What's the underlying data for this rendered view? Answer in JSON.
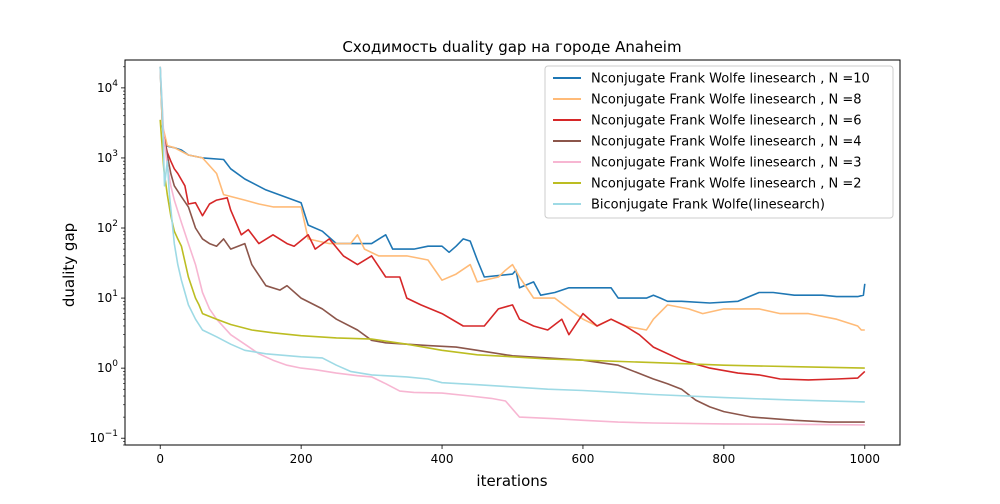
{
  "chart_data": {
    "type": "line",
    "title": "Сходимость duality gap на городе Anaheim",
    "xlabel": "iterations",
    "ylabel": "duality gap",
    "yscale": "log",
    "xlim": [
      -50,
      1050
    ],
    "ylim": [
      0.08,
      25000
    ],
    "xticks": [
      0,
      200,
      400,
      600,
      800,
      1000
    ],
    "xtick_labels": [
      "0",
      "200",
      "400",
      "600",
      "800",
      "1000"
    ],
    "yticks": [
      0.1,
      1,
      10,
      100,
      1000,
      10000
    ],
    "ytick_labels": [
      {
        "base": "10",
        "exp": "−1"
      },
      {
        "base": "10",
        "exp": "0"
      },
      {
        "base": "10",
        "exp": "1"
      },
      {
        "base": "10",
        "exp": "2"
      },
      {
        "base": "10",
        "exp": "3"
      },
      {
        "base": "10",
        "exp": "4"
      }
    ],
    "grid": false,
    "legend_position": "top-right",
    "series": [
      {
        "name": "Nconjugate Frank Wolfe linesearch , N =10",
        "color": "#1f77b4",
        "points": [
          [
            0,
            20000
          ],
          [
            3,
            3000
          ],
          [
            6,
            1500
          ],
          [
            20,
            1400
          ],
          [
            30,
            1300
          ],
          [
            40,
            1100
          ],
          [
            60,
            1000
          ],
          [
            90,
            950
          ],
          [
            100,
            700
          ],
          [
            120,
            500
          ],
          [
            150,
            350
          ],
          [
            200,
            230
          ],
          [
            210,
            110
          ],
          [
            230,
            90
          ],
          [
            250,
            60
          ],
          [
            300,
            60
          ],
          [
            320,
            80
          ],
          [
            330,
            50
          ],
          [
            360,
            50
          ],
          [
            380,
            55
          ],
          [
            400,
            55
          ],
          [
            410,
            45
          ],
          [
            420,
            55
          ],
          [
            430,
            70
          ],
          [
            440,
            65
          ],
          [
            450,
            35
          ],
          [
            460,
            20
          ],
          [
            500,
            22
          ],
          [
            505,
            25
          ],
          [
            510,
            14
          ],
          [
            530,
            17
          ],
          [
            540,
            11
          ],
          [
            560,
            12
          ],
          [
            580,
            14
          ],
          [
            600,
            14
          ],
          [
            620,
            14
          ],
          [
            640,
            14
          ],
          [
            650,
            10
          ],
          [
            660,
            10
          ],
          [
            690,
            10
          ],
          [
            700,
            11
          ],
          [
            710,
            10
          ],
          [
            720,
            9
          ],
          [
            740,
            9
          ],
          [
            780,
            8.5
          ],
          [
            820,
            9
          ],
          [
            850,
            12
          ],
          [
            870,
            12
          ],
          [
            900,
            11
          ],
          [
            940,
            11
          ],
          [
            960,
            10.5
          ],
          [
            990,
            10.5
          ],
          [
            998,
            11
          ],
          [
            1000,
            16
          ]
        ]
      },
      {
        "name": "Nconjugate Frank Wolfe linesearch , N =8",
        "color": "#ffbb78",
        "points": [
          [
            0,
            20000
          ],
          [
            3,
            3000
          ],
          [
            10,
            1500
          ],
          [
            20,
            1400
          ],
          [
            40,
            1100
          ],
          [
            60,
            1000
          ],
          [
            80,
            600
          ],
          [
            90,
            300
          ],
          [
            120,
            250
          ],
          [
            140,
            220
          ],
          [
            160,
            200
          ],
          [
            200,
            200
          ],
          [
            210,
            70
          ],
          [
            240,
            60
          ],
          [
            270,
            60
          ],
          [
            280,
            80
          ],
          [
            290,
            50
          ],
          [
            310,
            40
          ],
          [
            330,
            40
          ],
          [
            350,
            40
          ],
          [
            380,
            35
          ],
          [
            400,
            18
          ],
          [
            420,
            22
          ],
          [
            440,
            30
          ],
          [
            450,
            17
          ],
          [
            480,
            20
          ],
          [
            490,
            25
          ],
          [
            500,
            30
          ],
          [
            510,
            20
          ],
          [
            530,
            10
          ],
          [
            560,
            10
          ],
          [
            580,
            7
          ],
          [
            600,
            5
          ],
          [
            620,
            4
          ],
          [
            640,
            5
          ],
          [
            660,
            4
          ],
          [
            690,
            3.5
          ],
          [
            700,
            5
          ],
          [
            720,
            8
          ],
          [
            750,
            7
          ],
          [
            770,
            6
          ],
          [
            800,
            7
          ],
          [
            850,
            7
          ],
          [
            880,
            6
          ],
          [
            920,
            6
          ],
          [
            960,
            5
          ],
          [
            990,
            4
          ],
          [
            995,
            3.5
          ],
          [
            1000,
            3.5
          ]
        ]
      },
      {
        "name": "Nconjugate Frank Wolfe linesearch , N =6",
        "color": "#d62728",
        "points": [
          [
            5,
            2000
          ],
          [
            10,
            1200
          ],
          [
            15,
            900
          ],
          [
            20,
            700
          ],
          [
            25,
            600
          ],
          [
            35,
            400
          ],
          [
            40,
            220
          ],
          [
            50,
            230
          ],
          [
            60,
            150
          ],
          [
            70,
            220
          ],
          [
            80,
            250
          ],
          [
            95,
            270
          ],
          [
            100,
            180
          ],
          [
            115,
            80
          ],
          [
            125,
            95
          ],
          [
            140,
            60
          ],
          [
            160,
            80
          ],
          [
            180,
            60
          ],
          [
            190,
            55
          ],
          [
            210,
            80
          ],
          [
            220,
            50
          ],
          [
            240,
            70
          ],
          [
            260,
            40
          ],
          [
            280,
            30
          ],
          [
            300,
            40
          ],
          [
            320,
            20
          ],
          [
            340,
            20
          ],
          [
            350,
            10
          ],
          [
            370,
            8
          ],
          [
            400,
            6
          ],
          [
            430,
            4
          ],
          [
            460,
            4
          ],
          [
            480,
            7
          ],
          [
            500,
            8
          ],
          [
            510,
            5
          ],
          [
            530,
            4
          ],
          [
            550,
            3.5
          ],
          [
            570,
            5
          ],
          [
            580,
            3
          ],
          [
            600,
            6
          ],
          [
            620,
            4
          ],
          [
            640,
            5
          ],
          [
            660,
            4
          ],
          [
            680,
            3
          ],
          [
            700,
            2
          ],
          [
            740,
            1.3
          ],
          [
            780,
            1.0
          ],
          [
            820,
            0.85
          ],
          [
            850,
            0.8
          ],
          [
            880,
            0.7
          ],
          [
            920,
            0.68
          ],
          [
            960,
            0.7
          ],
          [
            990,
            0.72
          ],
          [
            1000,
            0.9
          ]
        ]
      },
      {
        "name": "Nconjugate Frank Wolfe linesearch , N =4",
        "color": "#8c564b",
        "points": [
          [
            5,
            2000
          ],
          [
            15,
            600
          ],
          [
            20,
            400
          ],
          [
            30,
            280
          ],
          [
            40,
            200
          ],
          [
            50,
            100
          ],
          [
            60,
            70
          ],
          [
            70,
            60
          ],
          [
            80,
            55
          ],
          [
            90,
            70
          ],
          [
            100,
            50
          ],
          [
            120,
            60
          ],
          [
            130,
            30
          ],
          [
            150,
            15
          ],
          [
            170,
            13
          ],
          [
            180,
            15
          ],
          [
            200,
            10
          ],
          [
            230,
            7
          ],
          [
            250,
            5
          ],
          [
            280,
            3.5
          ],
          [
            300,
            2.5
          ],
          [
            320,
            2.3
          ],
          [
            350,
            2.2
          ],
          [
            380,
            2.1
          ],
          [
            420,
            2.0
          ],
          [
            450,
            1.8
          ],
          [
            500,
            1.5
          ],
          [
            550,
            1.4
          ],
          [
            600,
            1.3
          ],
          [
            650,
            1.1
          ],
          [
            700,
            0.7
          ],
          [
            720,
            0.6
          ],
          [
            740,
            0.5
          ],
          [
            760,
            0.35
          ],
          [
            780,
            0.28
          ],
          [
            800,
            0.24
          ],
          [
            840,
            0.2
          ],
          [
            870,
            0.19
          ],
          [
            900,
            0.18
          ],
          [
            950,
            0.17
          ],
          [
            1000,
            0.17
          ]
        ]
      },
      {
        "name": "Nconjugate Frank Wolfe linesearch , N =3",
        "color": "#f7b6d2",
        "points": [
          [
            0,
            20000
          ],
          [
            5,
            2000
          ],
          [
            10,
            800
          ],
          [
            15,
            400
          ],
          [
            20,
            250
          ],
          [
            30,
            120
          ],
          [
            40,
            60
          ],
          [
            50,
            30
          ],
          [
            60,
            12
          ],
          [
            70,
            7
          ],
          [
            80,
            5
          ],
          [
            100,
            3
          ],
          [
            120,
            2.2
          ],
          [
            140,
            1.6
          ],
          [
            160,
            1.3
          ],
          [
            180,
            1.1
          ],
          [
            200,
            1.0
          ],
          [
            220,
            0.95
          ],
          [
            250,
            0.85
          ],
          [
            280,
            0.78
          ],
          [
            300,
            0.75
          ],
          [
            320,
            0.6
          ],
          [
            340,
            0.47
          ],
          [
            360,
            0.45
          ],
          [
            400,
            0.44
          ],
          [
            440,
            0.4
          ],
          [
            470,
            0.37
          ],
          [
            490,
            0.34
          ],
          [
            510,
            0.2
          ],
          [
            560,
            0.19
          ],
          [
            600,
            0.18
          ],
          [
            650,
            0.17
          ],
          [
            700,
            0.165
          ],
          [
            800,
            0.16
          ],
          [
            900,
            0.158
          ],
          [
            1000,
            0.155
          ]
        ]
      },
      {
        "name": "Nconjugate Frank Wolfe linesearch , N =2",
        "color": "#bcbd22",
        "points": [
          [
            0,
            3500
          ],
          [
            5,
            700
          ],
          [
            10,
            300
          ],
          [
            15,
            150
          ],
          [
            20,
            90
          ],
          [
            25,
            70
          ],
          [
            30,
            55
          ],
          [
            40,
            20
          ],
          [
            50,
            10
          ],
          [
            55,
            8
          ],
          [
            60,
            6
          ],
          [
            80,
            5
          ],
          [
            100,
            4.2
          ],
          [
            130,
            3.5
          ],
          [
            160,
            3.2
          ],
          [
            200,
            2.9
          ],
          [
            250,
            2.7
          ],
          [
            300,
            2.6
          ],
          [
            350,
            2.2
          ],
          [
            400,
            1.8
          ],
          [
            450,
            1.55
          ],
          [
            500,
            1.45
          ],
          [
            550,
            1.35
          ],
          [
            600,
            1.3
          ],
          [
            700,
            1.2
          ],
          [
            800,
            1.1
          ],
          [
            900,
            1.05
          ],
          [
            1000,
            1.0
          ]
        ]
      },
      {
        "name": "Biconjugate Frank Wolfe(linesearch)",
        "color": "#9edae5",
        "points": [
          [
            0,
            20000
          ],
          [
            3,
            5000
          ],
          [
            6,
            400
          ],
          [
            10,
            900
          ],
          [
            13,
            300
          ],
          [
            17,
            120
          ],
          [
            20,
            60
          ],
          [
            25,
            30
          ],
          [
            30,
            18
          ],
          [
            35,
            12
          ],
          [
            40,
            8
          ],
          [
            50,
            5
          ],
          [
            60,
            3.5
          ],
          [
            80,
            2.8
          ],
          [
            100,
            2.2
          ],
          [
            120,
            1.8
          ],
          [
            150,
            1.6
          ],
          [
            200,
            1.45
          ],
          [
            230,
            1.4
          ],
          [
            250,
            1.1
          ],
          [
            270,
            0.9
          ],
          [
            300,
            0.8
          ],
          [
            350,
            0.75
          ],
          [
            380,
            0.7
          ],
          [
            400,
            0.62
          ],
          [
            450,
            0.58
          ],
          [
            500,
            0.54
          ],
          [
            550,
            0.5
          ],
          [
            600,
            0.48
          ],
          [
            650,
            0.45
          ],
          [
            700,
            0.42
          ],
          [
            800,
            0.38
          ],
          [
            900,
            0.35
          ],
          [
            1000,
            0.33
          ]
        ]
      }
    ]
  }
}
